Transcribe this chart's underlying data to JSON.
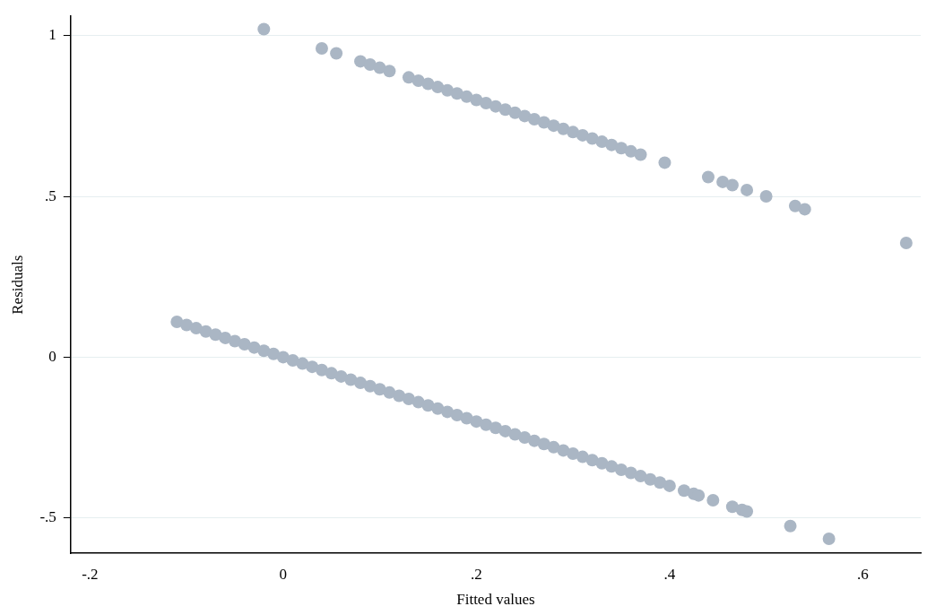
{
  "chart_data": {
    "type": "scatter",
    "xlabel": "Fitted values",
    "ylabel": "Residuals",
    "marker": "circle",
    "grid": "y",
    "xlim": [
      -0.22,
      0.66
    ],
    "ylim": [
      -0.61,
      1.06
    ],
    "xticks": [
      {
        "value": -0.2,
        "label": "-.2"
      },
      0,
      {
        "value": 0.2,
        "label": ".2"
      },
      {
        "value": 0.4,
        "label": ".4"
      },
      {
        "value": 0.6,
        "label": ".6"
      }
    ],
    "yticks": [
      {
        "value": -0.5,
        "label": "-.5"
      },
      0,
      {
        "value": 0.5,
        "label": ".5"
      },
      1
    ],
    "series": [
      {
        "color": "#aab6c4",
        "x": [
          -0.02,
          0.04,
          0.055,
          0.08,
          0.09,
          0.1,
          0.11,
          0.13,
          0.14,
          0.15,
          0.16,
          0.17,
          0.18,
          0.19,
          0.2,
          0.21,
          0.22,
          0.23,
          0.24,
          0.25,
          0.26,
          0.27,
          0.28,
          0.29,
          0.3,
          0.31,
          0.32,
          0.33,
          0.34,
          0.35,
          0.36,
          0.37,
          0.395,
          0.44,
          0.455,
          0.465,
          0.48,
          0.5,
          0.53,
          0.54,
          0.645
        ],
        "values": [
          1.02,
          0.96,
          0.945,
          0.92,
          0.91,
          0.9,
          0.89,
          0.87,
          0.86,
          0.85,
          0.84,
          0.83,
          0.82,
          0.81,
          0.8,
          0.79,
          0.78,
          0.77,
          0.76,
          0.75,
          0.74,
          0.73,
          0.72,
          0.71,
          0.7,
          0.69,
          0.68,
          0.67,
          0.66,
          0.65,
          0.64,
          0.63,
          0.605,
          0.56,
          0.545,
          0.535,
          0.52,
          0.5,
          0.47,
          0.46,
          0.355
        ]
      },
      {
        "color": "#aab6c4",
        "x": [
          -0.11,
          -0.1,
          -0.09,
          -0.08,
          -0.07,
          -0.06,
          -0.05,
          -0.04,
          -0.03,
          -0.02,
          -0.01,
          0,
          0.01,
          0.02,
          0.03,
          0.04,
          0.05,
          0.06,
          0.07,
          0.08,
          0.09,
          0.1,
          0.11,
          0.12,
          0.13,
          0.14,
          0.15,
          0.16,
          0.17,
          0.18,
          0.19,
          0.2,
          0.21,
          0.22,
          0.23,
          0.24,
          0.25,
          0.26,
          0.27,
          0.28,
          0.29,
          0.3,
          0.31,
          0.32,
          0.33,
          0.34,
          0.35,
          0.36,
          0.37,
          0.38,
          0.39,
          0.4,
          0.415,
          0.425,
          0.43,
          0.445,
          0.465,
          0.475,
          0.48,
          0.525,
          0.565
        ],
        "values": [
          0.11,
          0.1,
          0.09,
          0.08,
          0.07,
          0.06,
          0.05,
          0.04,
          0.03,
          0.02,
          0.01,
          0,
          -0.01,
          -0.02,
          -0.03,
          -0.04,
          -0.05,
          -0.06,
          -0.07,
          -0.08,
          -0.09,
          -0.1,
          -0.11,
          -0.12,
          -0.13,
          -0.14,
          -0.15,
          -0.16,
          -0.17,
          -0.18,
          -0.19,
          -0.2,
          -0.21,
          -0.22,
          -0.23,
          -0.24,
          -0.25,
          -0.26,
          -0.27,
          -0.28,
          -0.29,
          -0.3,
          -0.31,
          -0.32,
          -0.33,
          -0.34,
          -0.35,
          -0.36,
          -0.37,
          -0.38,
          -0.39,
          -0.4,
          -0.415,
          -0.425,
          -0.43,
          -0.445,
          -0.465,
          -0.475,
          -0.48,
          -0.525,
          -0.565
        ]
      }
    ]
  }
}
